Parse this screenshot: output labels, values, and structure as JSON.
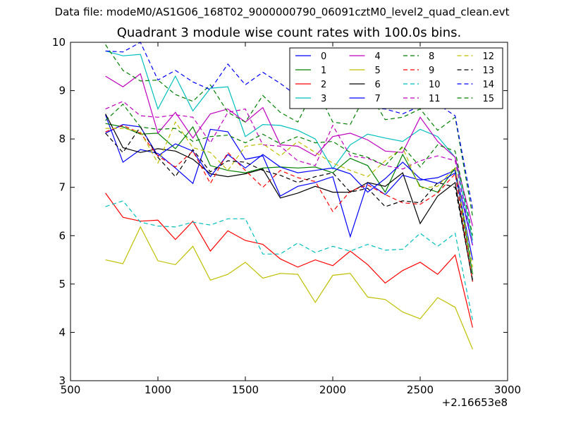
{
  "figure": {
    "suptitle": "Data file: modeM0/AS1G06_168T02_9000000790_06091cztM0_level2_quad_clean.evt"
  },
  "chart_data": {
    "type": "line",
    "title": "Quadrant 3 module wise count rates with 100.0s bins.",
    "xlabel": "",
    "ylabel": "",
    "x_offset_label": "+2.16653e8",
    "xlim": [
      500,
      3000
    ],
    "ylim": [
      3,
      10
    ],
    "xticks": [
      500,
      1000,
      1500,
      2000,
      2500,
      3000
    ],
    "yticks": [
      3,
      4,
      5,
      6,
      7,
      8,
      9,
      10
    ],
    "x": [
      700,
      800,
      900,
      1000,
      1100,
      1200,
      1300,
      1400,
      1500,
      1600,
      1700,
      1800,
      1900,
      2000,
      2100,
      2200,
      2300,
      2400,
      2500,
      2600,
      2700,
      2800
    ],
    "legend_columns": 4,
    "legend_position": "top-right",
    "series": [
      {
        "name": "0",
        "color": "#0000ff",
        "dash": "solid",
        "values": [
          8.5,
          7.52,
          7.78,
          7.7,
          7.4,
          7.08,
          8.2,
          8.15,
          7.58,
          7.65,
          6.82,
          7.02,
          7.1,
          7.22,
          5.98,
          7.1,
          6.85,
          7.25,
          7.15,
          7.2,
          7.35,
          5.8
        ]
      },
      {
        "name": "1",
        "color": "#008000",
        "dash": "solid",
        "values": [
          8.32,
          8.25,
          8.1,
          8.12,
          7.8,
          8.25,
          7.45,
          7.35,
          7.3,
          7.4,
          7.42,
          7.4,
          7.42,
          7.3,
          7.6,
          7.45,
          6.9,
          7.68,
          7.02,
          6.9,
          7.4,
          5.2
        ]
      },
      {
        "name": "2",
        "color": "#ff0000",
        "dash": "solid",
        "values": [
          6.88,
          6.38,
          6.3,
          6.32,
          5.92,
          6.3,
          5.68,
          6.1,
          5.9,
          5.82,
          5.52,
          5.35,
          5.5,
          5.38,
          5.68,
          5.4,
          5.02,
          5.28,
          5.45,
          5.2,
          5.6,
          4.1
        ]
      },
      {
        "name": "3",
        "color": "#00bfbf",
        "dash": "solid",
        "values": [
          9.82,
          9.72,
          9.75,
          8.62,
          9.3,
          8.58,
          9.05,
          9.08,
          8.05,
          8.3,
          8.28,
          8.18,
          8.0,
          7.38,
          7.88,
          8.1,
          8.02,
          7.95,
          8.2,
          8.05,
          7.62,
          5.9
        ]
      },
      {
        "name": "4",
        "color": "#bf00bf",
        "dash": "solid",
        "values": [
          9.3,
          9.08,
          9.35,
          8.12,
          8.55,
          8.02,
          8.52,
          8.62,
          8.35,
          8.65,
          7.88,
          7.85,
          7.65,
          8.05,
          8.12,
          7.98,
          7.75,
          7.72,
          8.45,
          7.95,
          7.62,
          6.2
        ]
      },
      {
        "name": "5",
        "color": "#bfbf00",
        "dash": "solid",
        "values": [
          5.5,
          5.42,
          6.18,
          5.48,
          5.4,
          5.78,
          5.08,
          5.2,
          5.45,
          5.12,
          5.22,
          5.2,
          4.62,
          5.18,
          5.22,
          4.73,
          4.68,
          4.42,
          4.28,
          4.72,
          4.52,
          3.65
        ]
      },
      {
        "name": "6",
        "color": "#000000",
        "dash": "solid",
        "values": [
          8.52,
          7.82,
          7.72,
          7.8,
          7.75,
          7.58,
          7.28,
          7.22,
          7.28,
          7.38,
          6.78,
          6.88,
          7.02,
          6.9,
          6.9,
          7.1,
          7.02,
          7.3,
          6.25,
          6.82,
          7.1,
          5.05
        ]
      },
      {
        "name": "7",
        "color": "#0000ff",
        "dash": "solid",
        "values": [
          8.12,
          8.3,
          8.25,
          7.65,
          7.9,
          7.75,
          7.22,
          7.68,
          7.4,
          7.68,
          7.42,
          7.3,
          7.35,
          7.4,
          7.28,
          6.9,
          7.18,
          7.52,
          7.18,
          7.08,
          7.3,
          5.5
        ]
      },
      {
        "name": "8",
        "color": "#008000",
        "dash": "dashed",
        "values": [
          9.95,
          9.42,
          9.2,
          9.22,
          8.92,
          8.78,
          9.12,
          8.55,
          8.35,
          8.9,
          8.55,
          8.35,
          9.08,
          8.35,
          8.3,
          9.0,
          8.4,
          8.45,
          8.62,
          8.18,
          8.45,
          6.4
        ]
      },
      {
        "name": "9",
        "color": "#ff0000",
        "dash": "dashed",
        "values": [
          8.15,
          8.28,
          8.12,
          7.65,
          7.42,
          7.75,
          7.08,
          7.72,
          7.35,
          7.0,
          7.35,
          7.2,
          7.12,
          6.5,
          6.92,
          7.05,
          6.85,
          6.68,
          6.65,
          6.88,
          7.28,
          5.05
        ]
      },
      {
        "name": "10",
        "color": "#00bfbf",
        "dash": "dashed",
        "values": [
          6.6,
          6.72,
          6.28,
          6.2,
          6.18,
          6.28,
          6.22,
          6.35,
          6.35,
          5.62,
          5.62,
          5.85,
          5.65,
          5.78,
          5.68,
          5.82,
          5.7,
          5.72,
          6.05,
          5.78,
          6.05,
          4.25
        ]
      },
      {
        "name": "11",
        "color": "#bf00bf",
        "dash": "dashed",
        "values": [
          8.62,
          8.78,
          8.48,
          8.45,
          8.5,
          8.45,
          7.92,
          8.55,
          8.62,
          7.88,
          7.85,
          7.55,
          7.45,
          8.28,
          7.65,
          7.6,
          7.45,
          7.38,
          7.55,
          7.65,
          7.55,
          5.8
        ]
      },
      {
        "name": "12",
        "color": "#bfbf00",
        "dash": "dashed",
        "values": [
          8.22,
          8.22,
          8.15,
          7.5,
          8.35,
          7.82,
          7.72,
          7.35,
          7.85,
          7.9,
          7.65,
          7.95,
          7.72,
          7.5,
          7.35,
          7.22,
          7.55,
          7.82,
          6.98,
          7.02,
          7.42,
          5.35
        ]
      },
      {
        "name": "13",
        "color": "#000000",
        "dash": "dashed",
        "values": [
          8.12,
          7.72,
          8.25,
          7.62,
          7.22,
          7.78,
          7.32,
          7.55,
          7.52,
          7.35,
          7.25,
          7.1,
          7.22,
          7.3,
          6.9,
          6.98,
          6.6,
          6.72,
          6.68,
          7.1,
          7.0,
          5.08
        ]
      },
      {
        "name": "14",
        "color": "#0000ff",
        "dash": "dashed",
        "values": [
          9.82,
          9.8,
          10.0,
          9.22,
          9.42,
          9.18,
          9.02,
          9.55,
          9.12,
          9.38,
          9.15,
          8.88,
          8.92,
          8.78,
          8.92,
          8.65,
          8.62,
          8.52,
          8.68,
          8.72,
          8.48,
          6.55
        ]
      },
      {
        "name": "15",
        "color": "#008000",
        "dash": "dashed",
        "values": [
          8.38,
          8.72,
          8.25,
          8.2,
          8.22,
          7.95,
          8.05,
          8.08,
          7.92,
          8.1,
          7.9,
          8.05,
          7.92,
          7.95,
          7.72,
          7.62,
          7.45,
          7.85,
          7.42,
          7.88,
          7.75,
          6.0
        ]
      }
    ]
  }
}
